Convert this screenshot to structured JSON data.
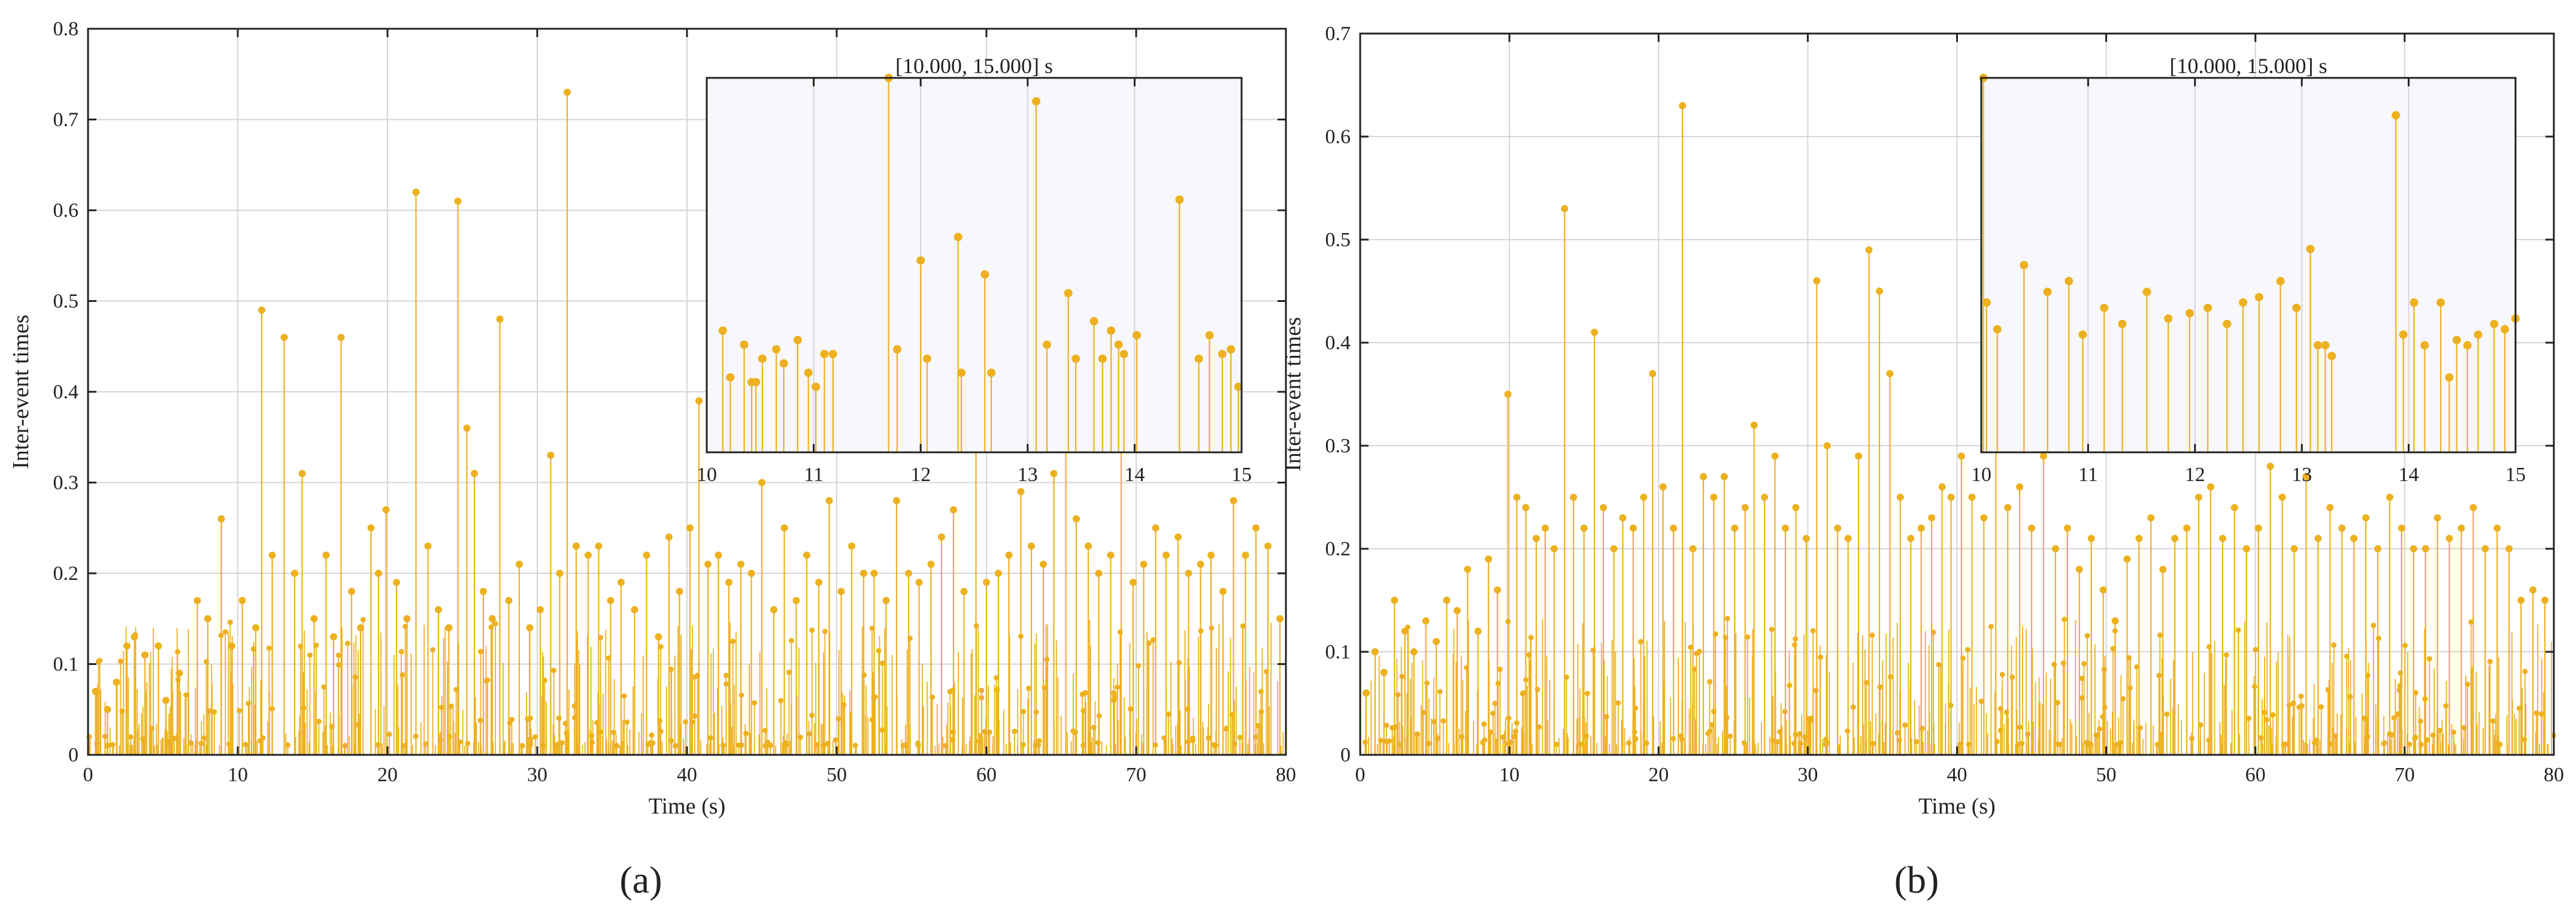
{
  "figure": {
    "panel_labels": [
      "(a)",
      "(b)"
    ]
  },
  "chart_data": [
    {
      "type": "stem",
      "panel": "(a)",
      "xlabel": "Time (s)",
      "ylabel": "Inter-event times",
      "xlim": [
        0,
        80
      ],
      "ylim": [
        0,
        0.8
      ],
      "xticks": [
        0,
        10,
        20,
        30,
        40,
        50,
        60,
        70,
        80
      ],
      "yticks": [
        0,
        0.1,
        0.2,
        0.3,
        0.4,
        0.5,
        0.6,
        0.7,
        0.8
      ],
      "grid": true,
      "color": "#EDB120",
      "stems_x": [
        0.5,
        1.3,
        1.9,
        2.6,
        3.1,
        3.8,
        4.7,
        5.2,
        6.1,
        7.3,
        8.0,
        8.9,
        9.6,
        10.3,
        11.2,
        11.6,
        12.3,
        13.1,
        13.8,
        14.3,
        15.1,
        15.9,
        16.4,
        16.9,
        17.6,
        18.2,
        18.9,
        19.4,
        19.9,
        20.6,
        21.3,
        21.9,
        22.7,
        23.4,
        24.1,
        24.7,
        25.3,
        25.8,
        26.4,
        27.0,
        27.5,
        28.1,
        28.8,
        29.5,
        30.2,
        30.9,
        31.5,
        32.0,
        32.6,
        33.4,
        34.1,
        34.9,
        35.6,
        36.5,
        37.3,
        38.1,
        38.8,
        39.5,
        40.2,
        40.8,
        41.4,
        42.1,
        42.8,
        43.6,
        44.3,
        45.0,
        45.8,
        46.5,
        47.3,
        48.0,
        48.8,
        49.5,
        50.3,
        51.0,
        51.8,
        52.5,
        53.3,
        54.0,
        54.8,
        55.5,
        56.3,
        57.0,
        57.8,
        58.5,
        59.3,
        60.0,
        60.8,
        61.5,
        62.3,
        63.0,
        63.8,
        64.5,
        65.3,
        66.0,
        66.8,
        67.5,
        68.3,
        69.0,
        69.8,
        70.5,
        71.3,
        72.0,
        72.8,
        73.5,
        74.3,
        75.0,
        75.8,
        76.5,
        77.3,
        78.0,
        78.8,
        79.6
      ],
      "stems_y": [
        0.07,
        0.05,
        0.08,
        0.12,
        0.13,
        0.11,
        0.12,
        0.06,
        0.09,
        0.17,
        0.15,
        0.26,
        0.12,
        0.17,
        0.14,
        0.49,
        0.22,
        0.46,
        0.2,
        0.31,
        0.15,
        0.22,
        0.13,
        0.46,
        0.18,
        0.14,
        0.25,
        0.2,
        0.27,
        0.19,
        0.15,
        0.62,
        0.23,
        0.16,
        0.14,
        0.61,
        0.36,
        0.31,
        0.18,
        0.15,
        0.48,
        0.17,
        0.21,
        0.14,
        0.16,
        0.33,
        0.2,
        0.73,
        0.23,
        0.22,
        0.23,
        0.17,
        0.19,
        0.16,
        0.22,
        0.13,
        0.24,
        0.18,
        0.25,
        0.39,
        0.21,
        0.22,
        0.19,
        0.21,
        0.2,
        0.3,
        0.16,
        0.25,
        0.17,
        0.22,
        0.19,
        0.28,
        0.18,
        0.23,
        0.2,
        0.2,
        0.17,
        0.28,
        0.2,
        0.19,
        0.21,
        0.24,
        0.27,
        0.18,
        0.35,
        0.19,
        0.2,
        0.22,
        0.29,
        0.23,
        0.21,
        0.31,
        0.37,
        0.26,
        0.23,
        0.2,
        0.22,
        0.36,
        0.19,
        0.21,
        0.25,
        0.22,
        0.24,
        0.2,
        0.21,
        0.22,
        0.18,
        0.28,
        0.22,
        0.25,
        0.23,
        0.15
      ],
      "inset": {
        "title": "[10.000, 15.000] s",
        "xlim": [
          10,
          15
        ],
        "ylim": [
          0,
          0.8
        ],
        "xticks": [
          10,
          11,
          12,
          13,
          14,
          15
        ],
        "stems_x": [
          10.15,
          10.22,
          10.35,
          10.42,
          10.46,
          10.52,
          10.65,
          10.72,
          10.85,
          10.95,
          11.02,
          11.1,
          11.18,
          11.7,
          11.78,
          12.0,
          12.06,
          12.35,
          12.38,
          12.6,
          12.66,
          13.08,
          13.18,
          13.38,
          13.45,
          13.62,
          13.7,
          13.78,
          13.85,
          13.9,
          14.02,
          14.42,
          14.6,
          14.7,
          14.82,
          14.9,
          14.97
        ],
        "stems_y": [
          0.26,
          0.16,
          0.23,
          0.15,
          0.15,
          0.2,
          0.22,
          0.19,
          0.24,
          0.17,
          0.14,
          0.21,
          0.21,
          0.83,
          0.22,
          0.41,
          0.2,
          0.46,
          0.17,
          0.38,
          0.17,
          0.75,
          0.23,
          0.34,
          0.2,
          0.28,
          0.2,
          0.26,
          0.23,
          0.21,
          0.25,
          0.54,
          0.2,
          0.25,
          0.21,
          0.22,
          0.14
        ]
      }
    },
    {
      "type": "stem",
      "panel": "(b)",
      "xlabel": "Time (s)",
      "ylabel": "Inter-event times",
      "xlim": [
        0,
        80
      ],
      "ylim": [
        0,
        0.7
      ],
      "xticks": [
        0,
        10,
        20,
        30,
        40,
        50,
        60,
        70,
        80
      ],
      "yticks": [
        0,
        0.1,
        0.2,
        0.3,
        0.4,
        0.5,
        0.6,
        0.7
      ],
      "grid": true,
      "color": "#EDB120",
      "stems_x": [
        0.4,
        1.0,
        1.6,
        2.3,
        3.0,
        3.6,
        4.4,
        5.1,
        5.8,
        6.5,
        7.2,
        7.9,
        8.6,
        9.2,
        9.9,
        10.5,
        11.1,
        11.8,
        12.4,
        13.0,
        13.7,
        14.3,
        15.0,
        15.7,
        16.3,
        17.0,
        17.6,
        18.3,
        19.0,
        19.6,
        20.3,
        21.0,
        21.6,
        22.3,
        23.0,
        23.7,
        24.4,
        25.1,
        25.8,
        26.4,
        27.1,
        27.8,
        28.5,
        29.2,
        29.9,
        30.6,
        31.3,
        32.0,
        32.7,
        33.4,
        34.1,
        34.8,
        35.5,
        36.2,
        36.9,
        37.6,
        38.3,
        39.0,
        39.6,
        40.3,
        41.0,
        41.8,
        42.6,
        43.4,
        44.2,
        45.0,
        45.8,
        46.6,
        47.4,
        48.2,
        49.0,
        49.8,
        50.6,
        51.4,
        52.2,
        53.0,
        53.8,
        54.6,
        55.4,
        56.2,
        57.0,
        57.8,
        58.6,
        59.4,
        60.2,
        61.0,
        61.8,
        62.6,
        63.4,
        64.2,
        65.0,
        65.8,
        66.6,
        67.4,
        68.2,
        69.0,
        69.8,
        70.6,
        71.4,
        72.2,
        73.0,
        73.8,
        74.6,
        75.4,
        76.2,
        77.0,
        77.8,
        78.6,
        79.4
      ],
      "stems_y": [
        0.06,
        0.1,
        0.08,
        0.15,
        0.12,
        0.1,
        0.13,
        0.11,
        0.15,
        0.14,
        0.18,
        0.12,
        0.19,
        0.16,
        0.35,
        0.25,
        0.24,
        0.21,
        0.22,
        0.2,
        0.53,
        0.25,
        0.22,
        0.41,
        0.24,
        0.2,
        0.23,
        0.22,
        0.25,
        0.37,
        0.26,
        0.22,
        0.63,
        0.2,
        0.27,
        0.25,
        0.27,
        0.22,
        0.24,
        0.32,
        0.25,
        0.29,
        0.22,
        0.24,
        0.21,
        0.46,
        0.3,
        0.22,
        0.21,
        0.29,
        0.49,
        0.45,
        0.37,
        0.25,
        0.21,
        0.22,
        0.23,
        0.26,
        0.25,
        0.29,
        0.25,
        0.23,
        0.31,
        0.24,
        0.26,
        0.22,
        0.29,
        0.2,
        0.22,
        0.18,
        0.21,
        0.16,
        0.13,
        0.19,
        0.21,
        0.23,
        0.18,
        0.21,
        0.22,
        0.25,
        0.26,
        0.21,
        0.24,
        0.2,
        0.22,
        0.28,
        0.25,
        0.2,
        0.27,
        0.21,
        0.24,
        0.22,
        0.21,
        0.23,
        0.2,
        0.25,
        0.22,
        0.2,
        0.2,
        0.23,
        0.21,
        0.22,
        0.24,
        0.2,
        0.22,
        0.2,
        0.15,
        0.16,
        0.15
      ],
      "inset": {
        "title": "[10.000, 15.000] s",
        "xlim": [
          10,
          15
        ],
        "ylim": [
          0,
          0.7
        ],
        "xticks": [
          10,
          11,
          12,
          13,
          14,
          15
        ],
        "stems_x": [
          10.02,
          10.05,
          10.15,
          10.4,
          10.62,
          10.82,
          10.95,
          11.15,
          11.32,
          11.55,
          11.75,
          11.95,
          12.12,
          12.3,
          12.45,
          12.6,
          12.8,
          12.95,
          13.08,
          13.15,
          13.22,
          13.28,
          13.88,
          13.95,
          14.05,
          14.15,
          14.3,
          14.38,
          14.45,
          14.55,
          14.65,
          14.8,
          14.9,
          15.0
        ],
        "stems_y": [
          0.72,
          0.28,
          0.23,
          0.35,
          0.3,
          0.32,
          0.22,
          0.27,
          0.24,
          0.3,
          0.25,
          0.26,
          0.27,
          0.24,
          0.28,
          0.29,
          0.32,
          0.27,
          0.38,
          0.2,
          0.2,
          0.18,
          0.63,
          0.22,
          0.28,
          0.2,
          0.28,
          0.14,
          0.21,
          0.2,
          0.22,
          0.24,
          0.23,
          0.25
        ]
      }
    }
  ]
}
